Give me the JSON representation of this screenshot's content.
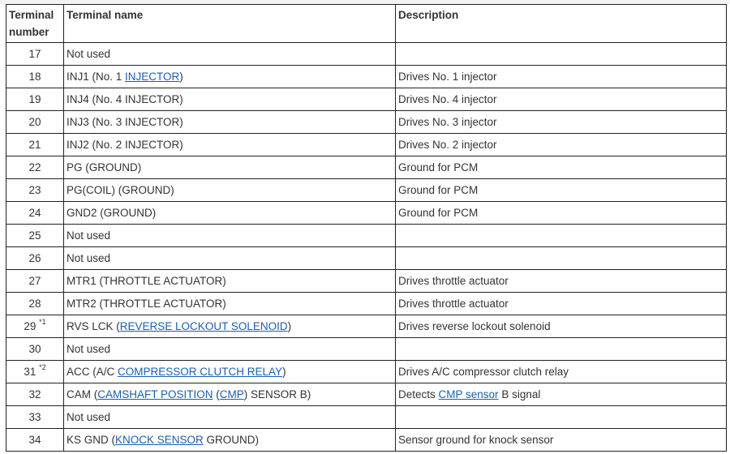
{
  "colors": {
    "link": "#1a5fb4",
    "border": "#222222",
    "text": "#333333"
  },
  "table": {
    "headers": [
      "Terminal number",
      "Terminal name",
      "Description"
    ],
    "rows": [
      {
        "number": "17",
        "note": "",
        "name": [
          {
            "t": "Not used"
          }
        ],
        "desc": []
      },
      {
        "number": "18",
        "note": "",
        "name": [
          {
            "t": "INJ1 (No. 1 "
          },
          {
            "t": "INJECTOR",
            "link": true
          },
          {
            "t": ")"
          }
        ],
        "desc": [
          {
            "t": "Drives No. 1 injector"
          }
        ]
      },
      {
        "number": "19",
        "note": "",
        "name": [
          {
            "t": "INJ4 (No. 4 INJECTOR)"
          }
        ],
        "desc": [
          {
            "t": "Drives No. 4 injector"
          }
        ]
      },
      {
        "number": "20",
        "note": "",
        "name": [
          {
            "t": "INJ3 (No. 3 INJECTOR)"
          }
        ],
        "desc": [
          {
            "t": "Drives No. 3 injector"
          }
        ]
      },
      {
        "number": "21",
        "note": "",
        "name": [
          {
            "t": "INJ2 (No. 2 INJECTOR)"
          }
        ],
        "desc": [
          {
            "t": "Drives No. 2 injector"
          }
        ]
      },
      {
        "number": "22",
        "note": "",
        "name": [
          {
            "t": "PG (GROUND)"
          }
        ],
        "desc": [
          {
            "t": "Ground for PCM"
          }
        ]
      },
      {
        "number": "23",
        "note": "",
        "name": [
          {
            "t": "PG(COIL) (GROUND)"
          }
        ],
        "desc": [
          {
            "t": "Ground for PCM"
          }
        ]
      },
      {
        "number": "24",
        "note": "",
        "name": [
          {
            "t": "GND2 (GROUND)"
          }
        ],
        "desc": [
          {
            "t": "Ground for PCM"
          }
        ]
      },
      {
        "number": "25",
        "note": "",
        "name": [
          {
            "t": "Not used"
          }
        ],
        "desc": []
      },
      {
        "number": "26",
        "note": "",
        "name": [
          {
            "t": "Not used"
          }
        ],
        "desc": []
      },
      {
        "number": "27",
        "note": "",
        "name": [
          {
            "t": "MTR1 (THROTTLE ACTUATOR)"
          }
        ],
        "desc": [
          {
            "t": "Drives throttle actuator"
          }
        ]
      },
      {
        "number": "28",
        "note": "",
        "name": [
          {
            "t": "MTR2 (THROTTLE ACTUATOR)"
          }
        ],
        "desc": [
          {
            "t": "Drives throttle actuator"
          }
        ]
      },
      {
        "number": "29",
        "note": "*1",
        "name": [
          {
            "t": "RVS LCK ("
          },
          {
            "t": "REVERSE LOCKOUT SOLENOID",
            "link": true
          },
          {
            "t": ")"
          }
        ],
        "desc": [
          {
            "t": "Drives reverse lockout solenoid"
          }
        ]
      },
      {
        "number": "30",
        "note": "",
        "name": [
          {
            "t": "Not used"
          }
        ],
        "desc": []
      },
      {
        "number": "31",
        "note": "*2",
        "name": [
          {
            "t": "ACC (A/C "
          },
          {
            "t": "COMPRESSOR CLUTCH RELAY",
            "link": true
          },
          {
            "t": ")"
          }
        ],
        "desc": [
          {
            "t": "Drives A/C compressor clutch relay"
          }
        ]
      },
      {
        "number": "32",
        "note": "",
        "name": [
          {
            "t": "CAM ("
          },
          {
            "t": "CAMSHAFT POSITION",
            "link": true
          },
          {
            "t": " ("
          },
          {
            "t": "CMP",
            "link": true
          },
          {
            "t": ") SENSOR B)"
          }
        ],
        "desc": [
          {
            "t": "Detects "
          },
          {
            "t": "CMP sensor",
            "link": true
          },
          {
            "t": " B signal"
          }
        ]
      },
      {
        "number": "33",
        "note": "",
        "name": [
          {
            "t": "Not used"
          }
        ],
        "desc": []
      },
      {
        "number": "34",
        "note": "",
        "name": [
          {
            "t": "KS GND ("
          },
          {
            "t": "KNOCK SENSOR",
            "link": true
          },
          {
            "t": " GROUND)"
          }
        ],
        "desc": [
          {
            "t": "Sensor ground for knock sensor"
          }
        ]
      }
    ]
  }
}
